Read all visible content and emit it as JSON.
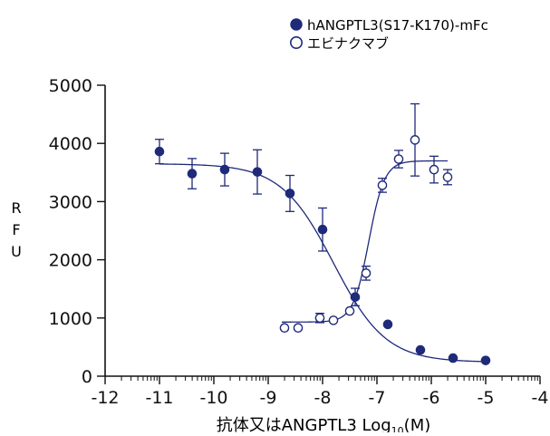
{
  "chart_data": {
    "type": "scatter",
    "xlabel": {
      "prefix": "抗体又はANGPTL3 Log",
      "subscript": "10",
      "suffix": "(M)"
    },
    "ylabel": [
      "R",
      "F",
      "U"
    ],
    "xlim": [
      -12,
      -4
    ],
    "ylim": [
      0,
      5000
    ],
    "x_ticks": [
      -12,
      -11,
      -10,
      -9,
      -8,
      -7,
      -6,
      -5,
      -4
    ],
    "y_ticks": [
      0,
      1000,
      2000,
      3000,
      4000,
      5000
    ],
    "legend_position": "top-right",
    "series": [
      {
        "name": "hANGPTL3(S17-K170)-mFc",
        "marker": "filled-circle",
        "color": "#1f2a7a",
        "points": [
          {
            "x": -11.0,
            "y": 3860,
            "err": 210
          },
          {
            "x": -10.4,
            "y": 3480,
            "err": 260
          },
          {
            "x": -9.8,
            "y": 3550,
            "err": 280
          },
          {
            "x": -9.2,
            "y": 3510,
            "err": 380
          },
          {
            "x": -8.6,
            "y": 3140,
            "err": 310
          },
          {
            "x": -8.0,
            "y": 2520,
            "err": 370
          },
          {
            "x": -7.4,
            "y": 1360,
            "err": 150
          },
          {
            "x": -6.8,
            "y": 890,
            "err": 0
          },
          {
            "x": -6.2,
            "y": 450,
            "err": 0
          },
          {
            "x": -5.6,
            "y": 310,
            "err": 0
          },
          {
            "x": -5.0,
            "y": 270,
            "err": 0
          }
        ],
        "fit": {
          "top": 3650,
          "bottom": 240,
          "log_ic50": -7.8,
          "hill": -0.9
        }
      },
      {
        "name": "エビナクマブ",
        "marker": "open-circle",
        "color": "#1f2a7a",
        "points": [
          {
            "x": -8.7,
            "y": 830,
            "err": 0
          },
          {
            "x": -8.45,
            "y": 830,
            "err": 0
          },
          {
            "x": -8.05,
            "y": 1000,
            "err": 80
          },
          {
            "x": -7.8,
            "y": 960,
            "err": 0
          },
          {
            "x": -7.5,
            "y": 1120,
            "err": 0
          },
          {
            "x": -7.2,
            "y": 1770,
            "err": 120
          },
          {
            "x": -6.9,
            "y": 3280,
            "err": 120
          },
          {
            "x": -6.6,
            "y": 3730,
            "err": 150
          },
          {
            "x": -6.3,
            "y": 4060,
            "err": 620
          },
          {
            "x": -5.95,
            "y": 3550,
            "err": 230
          },
          {
            "x": -5.7,
            "y": 3420,
            "err": 130
          }
        ],
        "fit": {
          "top": 3700,
          "bottom": 930,
          "log_ic50": -7.15,
          "hill": 3.0,
          "xmin": -8.75,
          "xmax": -5.7
        }
      }
    ]
  },
  "colors": {
    "series": "#1f2a7a",
    "axis": "#111111"
  }
}
